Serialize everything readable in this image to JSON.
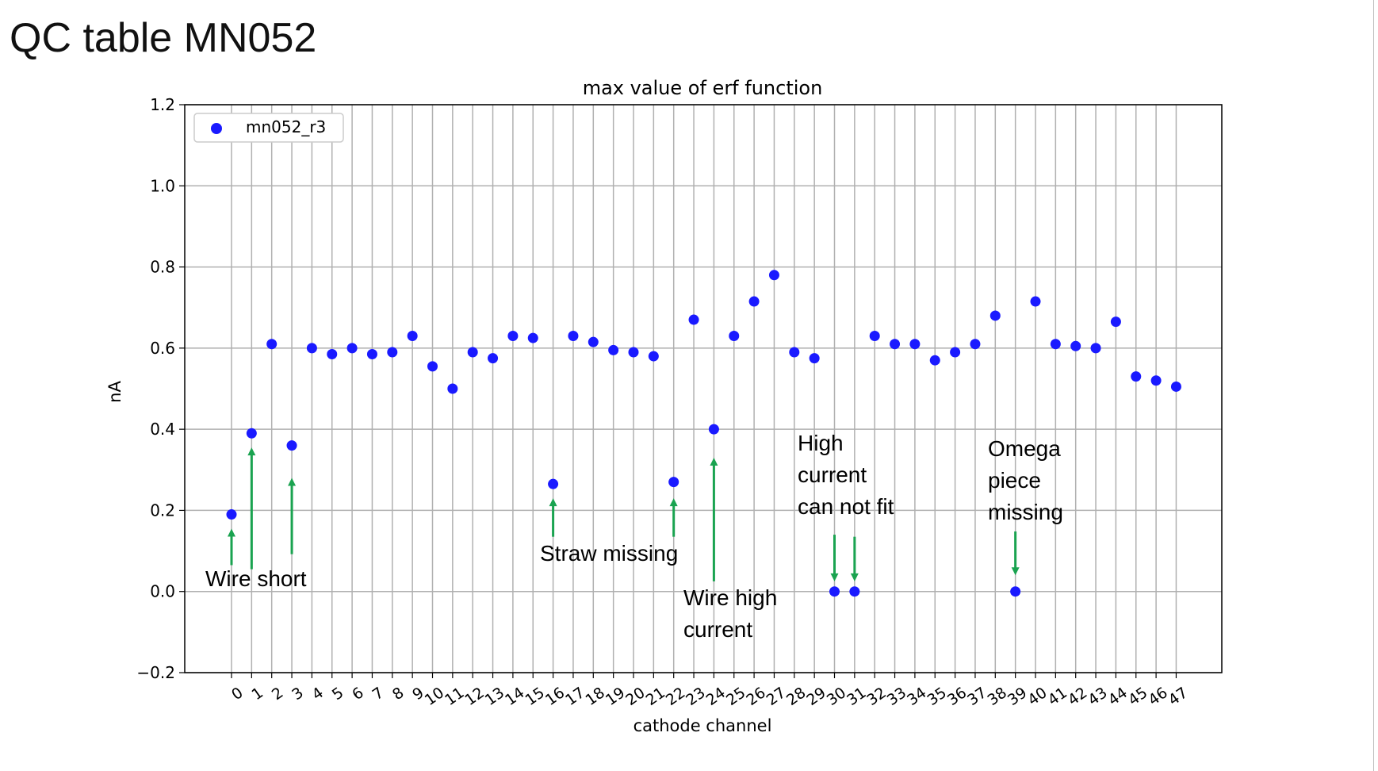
{
  "slide": {
    "title": "QC table MN052"
  },
  "chart_data": {
    "type": "scatter",
    "title": "max value of erf function",
    "xlabel": "cathode channel",
    "ylabel": "nA",
    "ylim": [
      -0.2,
      1.2
    ],
    "yticks": [
      -0.2,
      0.0,
      0.2,
      0.4,
      0.6,
      0.8,
      1.0,
      1.2
    ],
    "ytick_labels": [
      "−0.2",
      "0.0",
      "0.2",
      "0.4",
      "0.6",
      "0.8",
      "1.0",
      "1.2"
    ],
    "x": [
      0,
      1,
      2,
      3,
      4,
      5,
      6,
      7,
      8,
      9,
      10,
      11,
      12,
      13,
      14,
      15,
      16,
      17,
      18,
      19,
      20,
      21,
      22,
      23,
      24,
      25,
      26,
      27,
      28,
      29,
      30,
      31,
      32,
      33,
      34,
      35,
      36,
      37,
      38,
      39,
      40,
      41,
      42,
      43,
      44,
      45,
      46,
      47
    ],
    "series": [
      {
        "name": "mn052_r3",
        "color": "#1a1aff",
        "values": [
          0.19,
          0.39,
          0.61,
          0.36,
          0.6,
          0.585,
          0.6,
          0.585,
          0.59,
          0.63,
          0.555,
          0.5,
          0.59,
          0.575,
          0.63,
          0.625,
          0.265,
          0.63,
          0.615,
          0.595,
          0.59,
          0.58,
          0.27,
          0.67,
          0.4,
          0.63,
          0.715,
          0.78,
          0.59,
          0.575,
          0.0,
          0.0,
          0.63,
          0.61,
          0.61,
          0.57,
          0.59,
          0.61,
          0.68,
          0.0,
          0.715,
          0.61,
          0.605,
          0.6,
          0.665,
          0.53,
          0.52,
          0.505
        ]
      }
    ],
    "grid": true,
    "legend": "top-left",
    "annotations": [
      {
        "lines": [
          "Wire short"
        ],
        "channels": [
          0,
          1,
          3
        ],
        "direction": "up",
        "color": "#1aa350"
      },
      {
        "lines": [
          "Straw missing"
        ],
        "channels": [
          16,
          22
        ],
        "direction": "up",
        "color": "#1aa350"
      },
      {
        "lines": [
          "Wire high",
          "current"
        ],
        "channels": [
          24
        ],
        "direction": "up",
        "color": "#1aa350"
      },
      {
        "lines": [
          "High",
          "current",
          "can not fit"
        ],
        "channels": [
          30,
          31
        ],
        "direction": "down",
        "color": "#1aa350"
      },
      {
        "lines": [
          "Omega",
          "piece",
          "missing"
        ],
        "channels": [
          39
        ],
        "direction": "down",
        "color": "#1aa350"
      }
    ]
  }
}
